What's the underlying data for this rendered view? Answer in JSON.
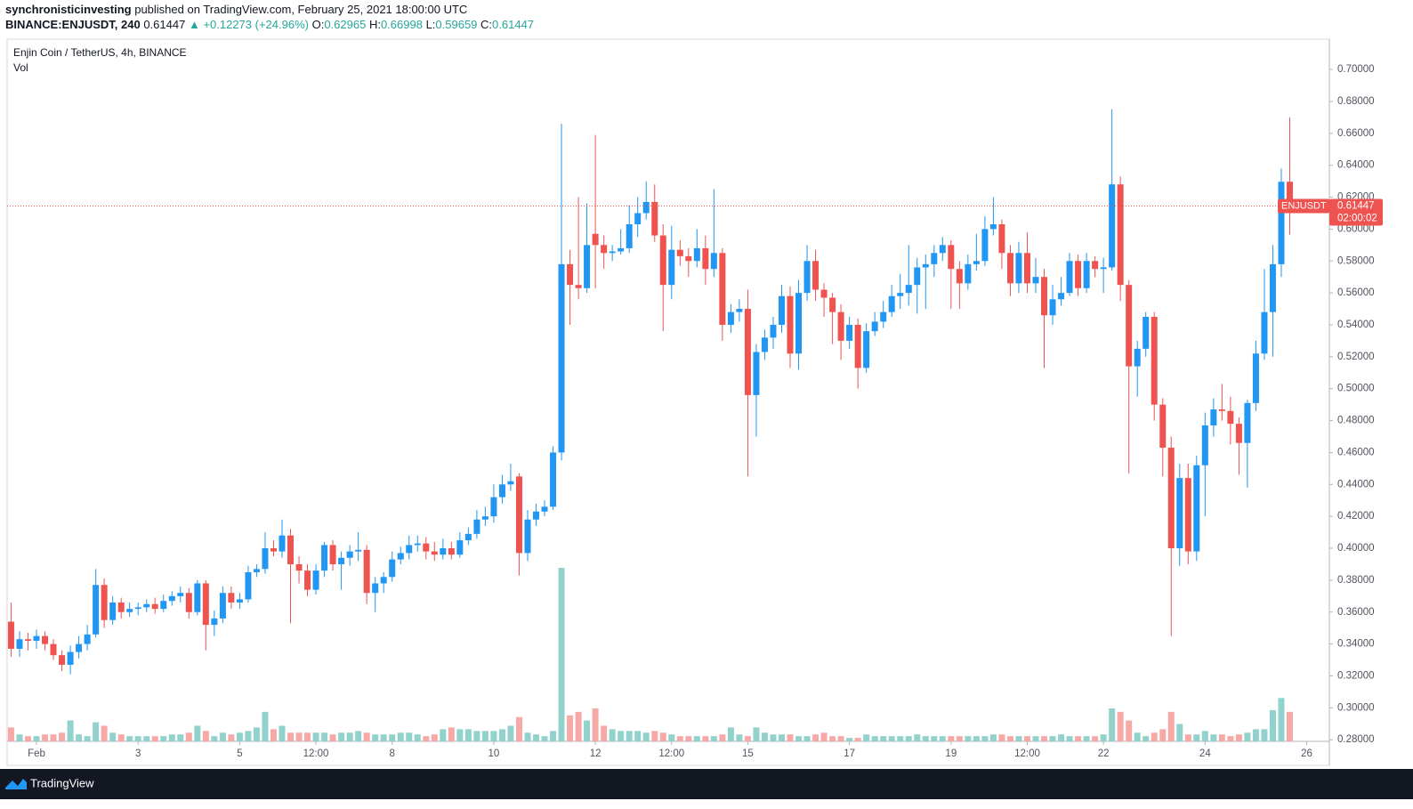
{
  "header": {
    "author": "synchronisticinvesting",
    "published": "published on TradingView.com, February 25, 2021 18:00:00 UTC",
    "symbol": "BINANCE:ENJUSDT, 240",
    "last": "0.61447",
    "change": "▲ +0.12273 (+24.96%)",
    "ohlc": [
      {
        "label": "O:",
        "value": "0.62965"
      },
      {
        "label": "H:",
        "value": "0.66998"
      },
      {
        "label": "L:",
        "value": "0.59659"
      },
      {
        "label": "C:",
        "value": "0.61447"
      }
    ]
  },
  "footer": {
    "brand": "TradingView"
  },
  "chart_data": {
    "type": "candlestick",
    "title": "Enjin Coin / TetherUS, 4h, BINANCE",
    "volume_label": "Vol",
    "badge_symbol": "ENJUSDT",
    "countdown": "02:00:02",
    "up_color": "#2196f3",
    "down_color": "#ef5350",
    "volume_up_color": "#92d2cc",
    "volume_down_color": "#f7a9a7",
    "grid": false,
    "xlim": [
      0.422,
      26.446
    ],
    "ylim": [
      0.279,
      0.719
    ],
    "xticks": [
      {
        "value": 1,
        "label": "Feb"
      },
      3,
      5,
      {
        "value": 6.5,
        "label": "12:00"
      },
      8,
      10,
      12,
      {
        "value": 13.5,
        "label": "12:00"
      },
      15,
      17,
      19,
      {
        "value": 20.5,
        "label": "12:00"
      },
      22,
      24,
      26
    ],
    "yticks": [
      {
        "value": 0.28,
        "label": "0.28000"
      },
      {
        "value": 0.3,
        "label": "0.30000"
      },
      {
        "value": 0.32,
        "label": "0.32000"
      },
      {
        "value": 0.34,
        "label": "0.34000"
      },
      {
        "value": 0.36,
        "label": "0.36000"
      },
      {
        "value": 0.38,
        "label": "0.38000"
      },
      {
        "value": 0.4,
        "label": "0.40000"
      },
      {
        "value": 0.42,
        "label": "0.42000"
      },
      {
        "value": 0.44,
        "label": "0.44000"
      },
      {
        "value": 0.46,
        "label": "0.46000"
      },
      {
        "value": 0.48,
        "label": "0.48000"
      },
      {
        "value": 0.5,
        "label": "0.50000"
      },
      {
        "value": 0.52,
        "label": "0.52000"
      },
      {
        "value": 0.54,
        "label": "0.54000"
      },
      {
        "value": 0.56,
        "label": "0.56000"
      },
      {
        "value": 0.58,
        "label": "0.58000"
      },
      {
        "value": 0.6,
        "label": "0.60000"
      },
      {
        "value": 0.62,
        "label": "0.62000"
      },
      {
        "value": 0.64,
        "label": "0.64000"
      },
      {
        "value": 0.66,
        "label": "0.66000"
      },
      {
        "value": 0.68,
        "label": "0.68000"
      },
      {
        "value": 0.7,
        "label": "0.70000"
      }
    ],
    "x": [
      0.5,
      0.667,
      0.833,
      1,
      1.167,
      1.333,
      1.5,
      1.667,
      1.833,
      2,
      2.167,
      2.333,
      2.5,
      2.667,
      2.833,
      3,
      3.167,
      3.333,
      3.5,
      3.667,
      3.833,
      4,
      4.167,
      4.333,
      4.5,
      4.667,
      4.833,
      5,
      5.167,
      5.333,
      5.5,
      5.667,
      5.833,
      6,
      6.167,
      6.333,
      6.5,
      6.667,
      6.833,
      7,
      7.167,
      7.333,
      7.5,
      7.667,
      7.833,
      8,
      8.167,
      8.333,
      8.5,
      8.667,
      8.833,
      9,
      9.167,
      9.333,
      9.5,
      9.667,
      9.833,
      10,
      10.167,
      10.333,
      10.5,
      10.667,
      10.833,
      11,
      11.167,
      11.333,
      11.5,
      11.667,
      11.833,
      12,
      12.167,
      12.333,
      12.5,
      12.667,
      12.833,
      13,
      13.167,
      13.333,
      13.5,
      13.667,
      13.833,
      14,
      14.167,
      14.333,
      14.5,
      14.667,
      14.833,
      15,
      15.167,
      15.333,
      15.5,
      15.667,
      15.833,
      16,
      16.167,
      16.333,
      16.5,
      16.667,
      16.833,
      17,
      17.167,
      17.333,
      17.5,
      17.667,
      17.833,
      18,
      18.167,
      18.333,
      18.5,
      18.667,
      18.833,
      19,
      19.167,
      19.333,
      19.5,
      19.667,
      19.833,
      20,
      20.167,
      20.333,
      20.5,
      20.667,
      20.833,
      21,
      21.167,
      21.333,
      21.5,
      21.667,
      21.833,
      22,
      22.167,
      22.333,
      22.5,
      22.667,
      22.833,
      23,
      23.167,
      23.333,
      23.5,
      23.667,
      23.833,
      24,
      24.167,
      24.333,
      24.5,
      24.667,
      24.833,
      25,
      25.167,
      25.333,
      25.5,
      25.667
    ],
    "ohlc": [
      [
        0.354,
        0.366,
        0.332,
        0.337
      ],
      [
        0.337,
        0.348,
        0.332,
        0.343
      ],
      [
        0.343,
        0.347,
        0.336,
        0.342
      ],
      [
        0.342,
        0.349,
        0.337,
        0.345
      ],
      [
        0.345,
        0.348,
        0.336,
        0.34
      ],
      [
        0.34,
        0.343,
        0.33,
        0.333
      ],
      [
        0.333,
        0.336,
        0.323,
        0.327
      ],
      [
        0.327,
        0.339,
        0.321,
        0.335
      ],
      [
        0.335,
        0.345,
        0.331,
        0.34
      ],
      [
        0.34,
        0.352,
        0.336,
        0.346
      ],
      [
        0.346,
        0.387,
        0.344,
        0.377
      ],
      [
        0.377,
        0.381,
        0.35,
        0.355
      ],
      [
        0.355,
        0.37,
        0.352,
        0.366
      ],
      [
        0.366,
        0.369,
        0.356,
        0.36
      ],
      [
        0.36,
        0.366,
        0.357,
        0.362
      ],
      [
        0.362,
        0.366,
        0.358,
        0.363
      ],
      [
        0.363,
        0.368,
        0.36,
        0.365
      ],
      [
        0.365,
        0.369,
        0.359,
        0.362
      ],
      [
        0.362,
        0.371,
        0.36,
        0.367
      ],
      [
        0.367,
        0.373,
        0.364,
        0.37
      ],
      [
        0.37,
        0.376,
        0.366,
        0.372
      ],
      [
        0.372,
        0.375,
        0.356,
        0.36
      ],
      [
        0.36,
        0.38,
        0.358,
        0.378
      ],
      [
        0.378,
        0.38,
        0.336,
        0.352
      ],
      [
        0.352,
        0.361,
        0.345,
        0.356
      ],
      [
        0.356,
        0.376,
        0.353,
        0.372
      ],
      [
        0.372,
        0.376,
        0.362,
        0.366
      ],
      [
        0.366,
        0.372,
        0.362,
        0.368
      ],
      [
        0.368,
        0.389,
        0.366,
        0.385
      ],
      [
        0.385,
        0.39,
        0.382,
        0.387
      ],
      [
        0.387,
        0.41,
        0.384,
        0.4
      ],
      [
        0.4,
        0.405,
        0.395,
        0.398
      ],
      [
        0.398,
        0.418,
        0.394,
        0.408
      ],
      [
        0.408,
        0.412,
        0.353,
        0.39
      ],
      [
        0.39,
        0.395,
        0.378,
        0.386
      ],
      [
        0.386,
        0.39,
        0.37,
        0.374
      ],
      [
        0.374,
        0.39,
        0.371,
        0.386
      ],
      [
        0.386,
        0.404,
        0.382,
        0.402
      ],
      [
        0.402,
        0.405,
        0.386,
        0.39
      ],
      [
        0.39,
        0.398,
        0.374,
        0.394
      ],
      [
        0.394,
        0.402,
        0.389,
        0.398
      ],
      [
        0.398,
        0.41,
        0.392,
        0.399
      ],
      [
        0.399,
        0.402,
        0.365,
        0.372
      ],
      [
        0.372,
        0.382,
        0.36,
        0.378
      ],
      [
        0.378,
        0.385,
        0.372,
        0.382
      ],
      [
        0.382,
        0.398,
        0.379,
        0.393
      ],
      [
        0.393,
        0.401,
        0.39,
        0.397
      ],
      [
        0.397,
        0.408,
        0.393,
        0.402
      ],
      [
        0.402,
        0.408,
        0.398,
        0.403
      ],
      [
        0.403,
        0.407,
        0.393,
        0.398
      ],
      [
        0.398,
        0.404,
        0.392,
        0.396
      ],
      [
        0.396,
        0.406,
        0.393,
        0.4
      ],
      [
        0.4,
        0.404,
        0.393,
        0.396
      ],
      [
        0.396,
        0.41,
        0.394,
        0.405
      ],
      [
        0.405,
        0.413,
        0.402,
        0.409
      ],
      [
        0.409,
        0.424,
        0.406,
        0.418
      ],
      [
        0.418,
        0.426,
        0.414,
        0.42
      ],
      [
        0.42,
        0.44,
        0.416,
        0.432
      ],
      [
        0.432,
        0.446,
        0.428,
        0.44
      ],
      [
        0.44,
        0.453,
        0.436,
        0.442
      ],
      [
        0.445,
        0.447,
        0.383,
        0.397
      ],
      [
        0.397,
        0.424,
        0.392,
        0.418
      ],
      [
        0.418,
        0.428,
        0.414,
        0.423
      ],
      [
        0.423,
        0.43,
        0.42,
        0.426
      ],
      [
        0.426,
        0.464,
        0.424,
        0.46
      ],
      [
        0.46,
        0.666,
        0.455,
        0.578
      ],
      [
        0.578,
        0.587,
        0.54,
        0.565
      ],
      [
        0.565,
        0.62,
        0.556,
        0.563
      ],
      [
        0.563,
        0.616,
        0.56,
        0.59
      ],
      [
        0.597,
        0.659,
        0.563,
        0.59
      ],
      [
        0.59,
        0.596,
        0.575,
        0.585
      ],
      [
        0.585,
        0.59,
        0.58,
        0.586
      ],
      [
        0.586,
        0.6,
        0.584,
        0.588
      ],
      [
        0.588,
        0.615,
        0.585,
        0.603
      ],
      [
        0.603,
        0.62,
        0.595,
        0.61
      ],
      [
        0.61,
        0.63,
        0.606,
        0.617
      ],
      [
        0.617,
        0.628,
        0.592,
        0.596
      ],
      [
        0.596,
        0.603,
        0.536,
        0.565
      ],
      [
        0.565,
        0.602,
        0.556,
        0.587
      ],
      [
        0.587,
        0.593,
        0.577,
        0.583
      ],
      [
        0.583,
        0.588,
        0.57,
        0.58
      ],
      [
        0.58,
        0.6,
        0.576,
        0.588
      ],
      [
        0.588,
        0.596,
        0.565,
        0.575
      ],
      [
        0.575,
        0.625,
        0.57,
        0.585
      ],
      [
        0.585,
        0.588,
        0.53,
        0.54
      ],
      [
        0.54,
        0.553,
        0.535,
        0.548
      ],
      [
        0.548,
        0.556,
        0.542,
        0.55
      ],
      [
        0.55,
        0.562,
        0.445,
        0.496
      ],
      [
        0.496,
        0.528,
        0.47,
        0.523
      ],
      [
        0.523,
        0.537,
        0.518,
        0.532
      ],
      [
        0.532,
        0.545,
        0.525,
        0.54
      ],
      [
        0.54,
        0.565,
        0.535,
        0.558
      ],
      [
        0.558,
        0.564,
        0.513,
        0.522
      ],
      [
        0.522,
        0.568,
        0.512,
        0.56
      ],
      [
        0.56,
        0.59,
        0.555,
        0.58
      ],
      [
        0.58,
        0.587,
        0.555,
        0.562
      ],
      [
        0.562,
        0.566,
        0.545,
        0.557
      ],
      [
        0.557,
        0.56,
        0.528,
        0.548
      ],
      [
        0.548,
        0.553,
        0.518,
        0.53
      ],
      [
        0.53,
        0.545,
        0.525,
        0.54
      ],
      [
        0.54,
        0.544,
        0.5,
        0.513
      ],
      [
        0.513,
        0.541,
        0.51,
        0.536
      ],
      [
        0.536,
        0.548,
        0.533,
        0.542
      ],
      [
        0.542,
        0.555,
        0.538,
        0.548
      ],
      [
        0.548,
        0.565,
        0.545,
        0.558
      ],
      [
        0.558,
        0.572,
        0.55,
        0.56
      ],
      [
        0.56,
        0.59,
        0.552,
        0.565
      ],
      [
        0.565,
        0.582,
        0.547,
        0.576
      ],
      [
        0.576,
        0.584,
        0.55,
        0.578
      ],
      [
        0.578,
        0.59,
        0.57,
        0.585
      ],
      [
        0.585,
        0.595,
        0.58,
        0.59
      ],
      [
        0.59,
        0.593,
        0.55,
        0.575
      ],
      [
        0.575,
        0.58,
        0.55,
        0.566
      ],
      [
        0.566,
        0.584,
        0.562,
        0.578
      ],
      [
        0.578,
        0.597,
        0.574,
        0.58
      ],
      [
        0.58,
        0.608,
        0.577,
        0.6
      ],
      [
        0.6,
        0.62,
        0.596,
        0.603
      ],
      [
        0.603,
        0.606,
        0.575,
        0.585
      ],
      [
        0.585,
        0.59,
        0.558,
        0.566
      ],
      [
        0.566,
        0.592,
        0.56,
        0.585
      ],
      [
        0.585,
        0.598,
        0.56,
        0.566
      ],
      [
        0.566,
        0.582,
        0.56,
        0.57
      ],
      [
        0.57,
        0.575,
        0.513,
        0.546
      ],
      [
        0.546,
        0.565,
        0.54,
        0.556
      ],
      [
        0.556,
        0.57,
        0.552,
        0.56
      ],
      [
        0.56,
        0.585,
        0.558,
        0.58
      ],
      [
        0.58,
        0.584,
        0.558,
        0.563
      ],
      [
        0.563,
        0.585,
        0.56,
        0.58
      ],
      [
        0.58,
        0.583,
        0.57,
        0.575
      ],
      [
        0.575,
        0.582,
        0.56,
        0.576
      ],
      [
        0.576,
        0.675,
        0.574,
        0.628
      ],
      [
        0.628,
        0.633,
        0.555,
        0.565
      ],
      [
        0.565,
        0.568,
        0.447,
        0.514
      ],
      [
        0.514,
        0.53,
        0.495,
        0.525
      ],
      [
        0.525,
        0.548,
        0.52,
        0.545
      ],
      [
        0.545,
        0.548,
        0.48,
        0.49
      ],
      [
        0.49,
        0.494,
        0.445,
        0.463
      ],
      [
        0.463,
        0.47,
        0.345,
        0.4
      ],
      [
        0.4,
        0.453,
        0.389,
        0.444
      ],
      [
        0.444,
        0.453,
        0.39,
        0.398
      ],
      [
        0.398,
        0.458,
        0.392,
        0.452
      ],
      [
        0.452,
        0.485,
        0.42,
        0.477
      ],
      [
        0.477,
        0.494,
        0.47,
        0.487
      ],
      [
        0.487,
        0.503,
        0.48,
        0.486
      ],
      [
        0.486,
        0.495,
        0.465,
        0.478
      ],
      [
        0.478,
        0.482,
        0.446,
        0.466
      ],
      [
        0.466,
        0.493,
        0.438,
        0.491
      ],
      [
        0.491,
        0.53,
        0.486,
        0.522
      ],
      [
        0.522,
        0.575,
        0.518,
        0.548
      ],
      [
        0.548,
        0.59,
        0.52,
        0.578
      ],
      [
        0.578,
        0.638,
        0.57,
        0.62965
      ],
      [
        0.62965,
        0.66998,
        0.59659,
        0.61447
      ]
    ],
    "volume": [
      8,
      4,
      3,
      3,
      4,
      4,
      5,
      12,
      4,
      3,
      11,
      9,
      5,
      4,
      3,
      3,
      3,
      3,
      3,
      4,
      4,
      5,
      9,
      6,
      3,
      5,
      4,
      5,
      6,
      8,
      17,
      7,
      9,
      5,
      5,
      5,
      5,
      5,
      4,
      5,
      5,
      6,
      5,
      4,
      4,
      4,
      5,
      5,
      4,
      3,
      4,
      7,
      8,
      7,
      7,
      6,
      6,
      6,
      7,
      9,
      14,
      5,
      4,
      3,
      6,
      100,
      15,
      17,
      12,
      19,
      9,
      7,
      6,
      6,
      6,
      5,
      6,
      5,
      4,
      3,
      3,
      3,
      3,
      3,
      4,
      8,
      4,
      3,
      8,
      5,
      4,
      4,
      4,
      3,
      3,
      4,
      5,
      3,
      3,
      2,
      2,
      4,
      3,
      3,
      3,
      3,
      3,
      4,
      3,
      3,
      3,
      3,
      3,
      3,
      3,
      3,
      4,
      4,
      3,
      3,
      3,
      3,
      3,
      3,
      4,
      3,
      3,
      3,
      3,
      4,
      19,
      17,
      12,
      5,
      3,
      5,
      7,
      17,
      10,
      4,
      4,
      6,
      4,
      4,
      3,
      4,
      5,
      7,
      7,
      18,
      25,
      17
    ]
  }
}
